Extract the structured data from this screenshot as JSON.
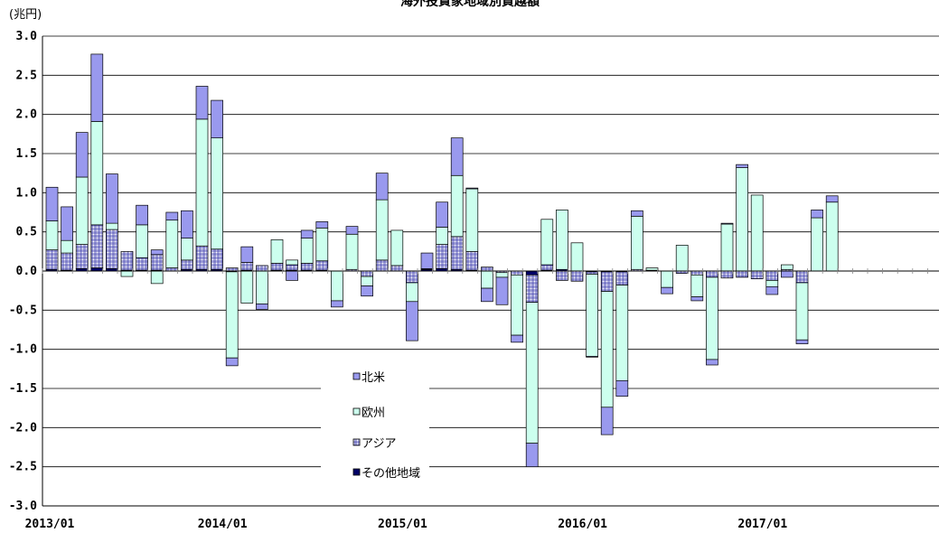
{
  "chart_data": {
    "type": "bar",
    "stacked": true,
    "title": "海外投資家地域別買越額",
    "ylabel": "(兆円)",
    "ylim": [
      -3.0,
      3.0
    ],
    "yticks": [
      "3.0",
      "2.5",
      "2.0",
      "1.5",
      "1.0",
      "0.5",
      "0.0",
      "-0.5",
      "-1.0",
      "-1.5",
      "-2.0",
      "-2.5",
      "-3.0"
    ],
    "x_tick_labels": [
      {
        "label": "2013/01",
        "index": 0
      },
      {
        "label": "2014/01",
        "index": 12
      },
      {
        "label": "2015/01",
        "index": 24
      },
      {
        "label": "2016/01",
        "index": 36
      },
      {
        "label": "2017/01",
        "index": 48
      }
    ],
    "grid": true,
    "legend_position": "center-bottom",
    "colors": {
      "north_america": "#9999ee",
      "europe": "#ccffee",
      "asia": "#ffffff",
      "asia_grid": "#3333aa",
      "other": "#000066",
      "outline": "#000000"
    },
    "categories": [
      "2013/01",
      "2013/02",
      "2013/03",
      "2013/04",
      "2013/05",
      "2013/06",
      "2013/07",
      "2013/08",
      "2013/09",
      "2013/10",
      "2013/11",
      "2013/12",
      "2014/01",
      "2014/02",
      "2014/03",
      "2014/04",
      "2014/05",
      "2014/06",
      "2014/07",
      "2014/08",
      "2014/09",
      "2014/10",
      "2014/11",
      "2014/12",
      "2015/01",
      "2015/02",
      "2015/03",
      "2015/04",
      "2015/05",
      "2015/06",
      "2015/07",
      "2015/08",
      "2015/09",
      "2015/10",
      "2015/11",
      "2015/12",
      "2016/01",
      "2016/02",
      "2016/03",
      "2016/04",
      "2016/05",
      "2016/06",
      "2016/07",
      "2016/08",
      "2016/09",
      "2016/10",
      "2016/11",
      "2016/12",
      "2017/01",
      "2017/02",
      "2017/03",
      "2017/04",
      "2017/05",
      "2017/06",
      "2017/07",
      "2017/08",
      "2017/09",
      "2017/10",
      "2017/11",
      "2017/12"
    ],
    "series": [
      {
        "name": "その他地域",
        "key": "other",
        "values": [
          0.02,
          0.01,
          0.03,
          0.04,
          0.03,
          0.01,
          0.01,
          0.01,
          0,
          0.02,
          0.02,
          0.02,
          -0.01,
          0.01,
          0,
          0.01,
          0.01,
          0.01,
          0.01,
          0,
          0,
          0,
          0,
          0,
          0,
          0.02,
          0.03,
          0.02,
          0.01,
          0,
          0,
          0,
          -0.05,
          0.01,
          0.02,
          0,
          -0.01,
          -0.01,
          -0.01,
          0,
          0,
          0,
          0,
          0,
          0,
          0,
          0,
          0,
          0,
          0,
          0,
          0,
          0,
          0,
          0,
          0,
          0,
          0,
          0,
          0
        ]
      },
      {
        "name": "アジア",
        "key": "asia",
        "values": [
          0.25,
          0.22,
          0.31,
          0.55,
          0.5,
          0.24,
          0.16,
          0.2,
          0.04,
          0.12,
          0.3,
          0.26,
          0.04,
          0.1,
          0.07,
          0.09,
          0.07,
          0.09,
          0.12,
          0,
          0.02,
          -0.07,
          0.14,
          0.07,
          -0.15,
          0.01,
          0.31,
          0.42,
          0.24,
          0.05,
          -0.02,
          -0.05,
          -0.35,
          0.07,
          -0.12,
          -0.13,
          -0.03,
          -0.25,
          -0.17,
          0.02,
          0.01,
          0,
          -0.03,
          -0.05,
          -0.08,
          -0.09,
          -0.08,
          -0.1,
          -0.12,
          0.02,
          -0.15,
          0,
          0,
          0,
          0,
          0,
          0,
          0,
          0,
          0
        ]
      },
      {
        "name": "欧州",
        "key": "europe",
        "values": [
          0.37,
          0.16,
          0.86,
          1.32,
          0.08,
          -0.07,
          0.42,
          -0.16,
          0.61,
          0.28,
          1.62,
          1.42,
          -1.1,
          -0.41,
          -0.42,
          0.3,
          0.06,
          0.32,
          0.42,
          -0.38,
          0.45,
          -0.12,
          0.77,
          0.45,
          -0.24,
          0,
          0.22,
          0.78,
          0.8,
          -0.22,
          -0.06,
          -0.77,
          -1.8,
          0.58,
          0.76,
          0.36,
          -1.05,
          -1.48,
          -1.22,
          0.68,
          0.03,
          -0.21,
          0.33,
          -0.28,
          -1.05,
          0.6,
          1.32,
          0.97,
          -0.08,
          0.06,
          -0.73,
          0.68,
          0.88,
          0,
          0,
          0,
          0,
          0,
          0,
          0
        ]
      },
      {
        "name": "北米",
        "key": "north_america",
        "values": [
          0.43,
          0.43,
          0.57,
          0.86,
          0.63,
          0,
          0.25,
          0.06,
          0.1,
          0.35,
          0.42,
          0.48,
          -0.1,
          0.2,
          -0.07,
          0,
          -0.12,
          0.1,
          0.08,
          -0.08,
          0.1,
          -0.13,
          0.34,
          0,
          -0.5,
          0.2,
          0.32,
          0.48,
          0.01,
          -0.17,
          -0.35,
          -0.09,
          -0.3,
          0,
          0,
          0,
          -0.01,
          -0.35,
          -0.2,
          0.07,
          0,
          -0.08,
          0,
          -0.05,
          -0.07,
          0.01,
          0.04,
          0,
          -0.1,
          -0.08,
          -0.05,
          0.1,
          0.08,
          0,
          0,
          0,
          0,
          0,
          0,
          0
        ]
      }
    ]
  }
}
